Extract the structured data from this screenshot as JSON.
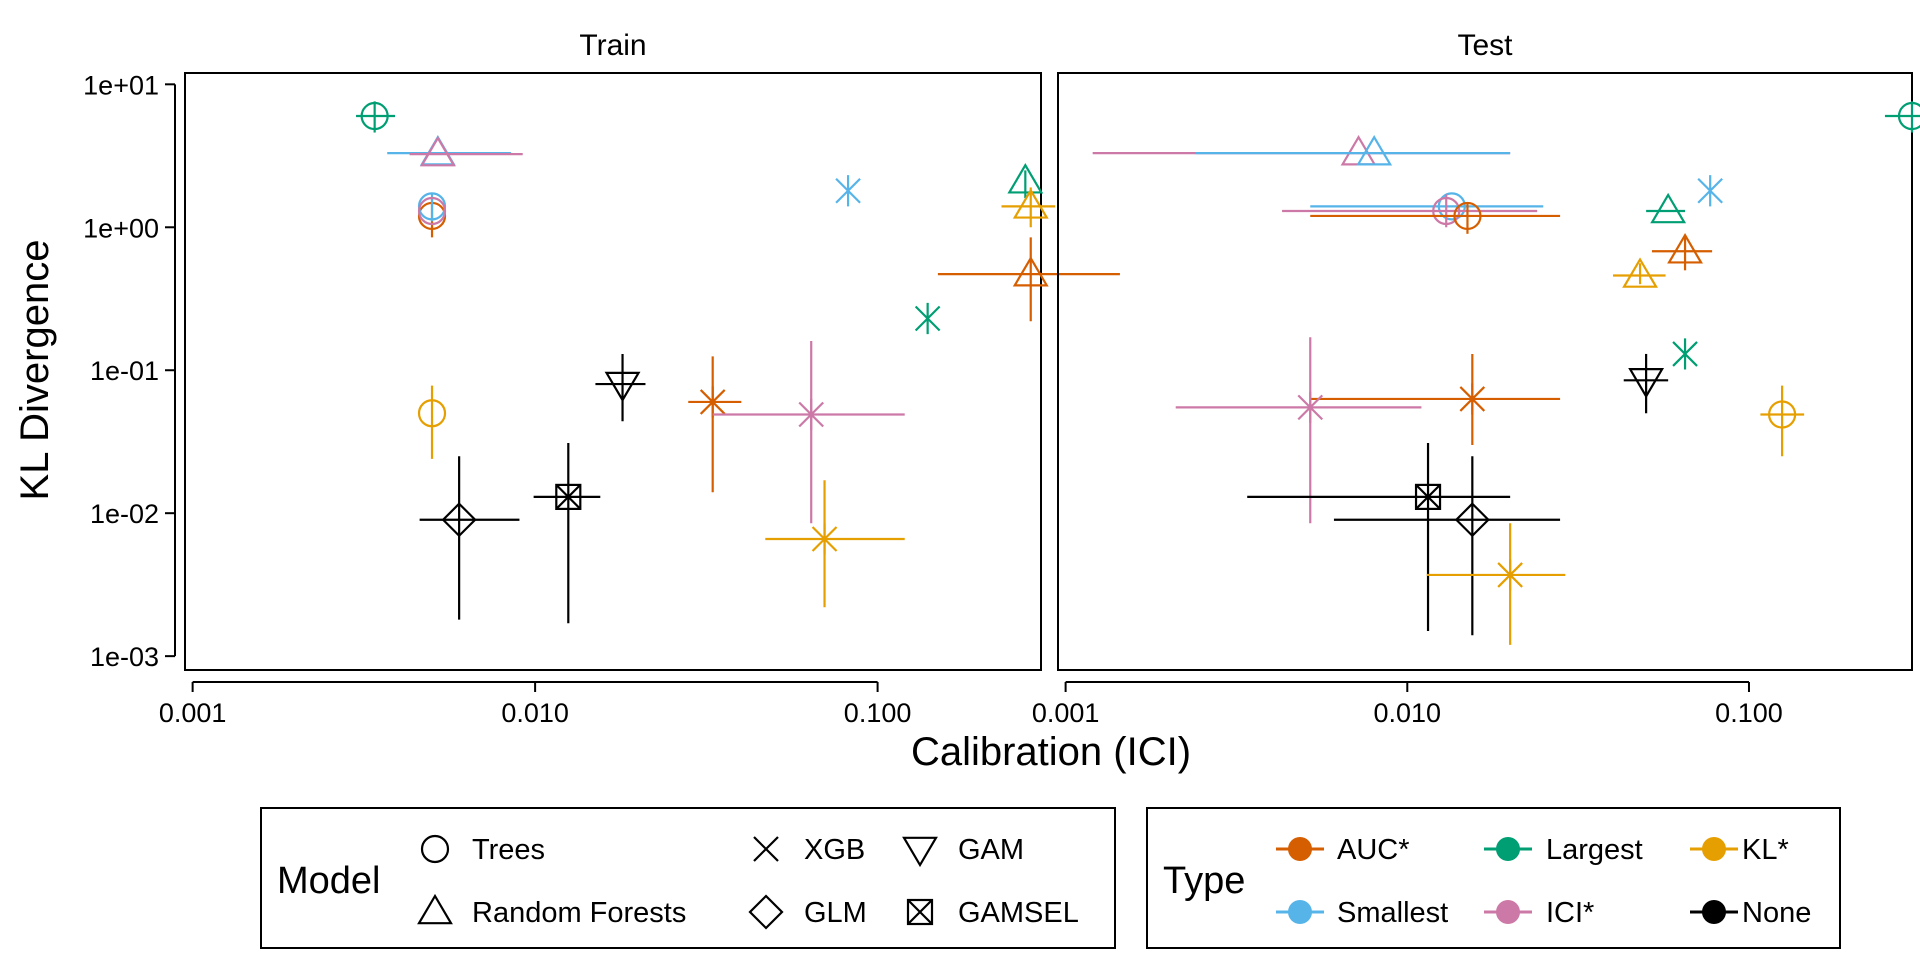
{
  "chart_data": {
    "type": "scatter",
    "xlabel": "Calibration (ICI)",
    "ylabel": "KL Divergence",
    "x_scale": "log10",
    "y_scale": "log10",
    "xlim": [
      0.00095,
      0.3
    ],
    "ylim": [
      0.0008,
      12
    ],
    "x_ticks": [
      0.001,
      0.01,
      0.1
    ],
    "x_tick_labels": [
      "0.001",
      "0.010",
      "0.100"
    ],
    "y_ticks": [
      0.001,
      0.01,
      0.1,
      1,
      10
    ],
    "y_tick_labels": [
      "1e-03",
      "1e-02",
      "1e-01",
      "1e+00",
      "1e+01"
    ],
    "grid": false,
    "legend_placement": "bottom",
    "panels": [
      {
        "name": "Train",
        "points": [
          {
            "model": "Trees",
            "type": "AUC*",
            "x": 0.005,
            "y": 1.2,
            "xerr": null,
            "yerr": [
              0.85,
              1.6
            ]
          },
          {
            "model": "Trees",
            "type": "Smallest",
            "x": 0.005,
            "y": 1.4,
            "xerr": null,
            "yerr": [
              1.1,
              1.7
            ]
          },
          {
            "model": "Trees",
            "type": "ICI*",
            "x": 0.005,
            "y": 1.3,
            "xerr": null,
            "yerr": null
          },
          {
            "model": "Trees",
            "type": "KL*",
            "x": 0.005,
            "y": 0.05,
            "xerr": null,
            "yerr": [
              0.024,
              0.078
            ]
          },
          {
            "model": "Trees",
            "type": "Largest",
            "x": 0.0034,
            "y": 6.0,
            "xerr": [
              0.003,
              0.0039
            ],
            "yerr": [
              4.6,
              7.6
            ]
          },
          {
            "model": "Random Forests",
            "type": "Smallest",
            "x": 0.0052,
            "y": 3.3,
            "xerr": [
              0.0037,
              0.0085
            ],
            "yerr": null
          },
          {
            "model": "Random Forests",
            "type": "ICI*",
            "x": 0.0052,
            "y": 3.25,
            "xerr": [
              0.0043,
              0.0092
            ],
            "yerr": null
          },
          {
            "model": "Random Forests",
            "type": "Largest",
            "x": 0.27,
            "y": 2.1,
            "xerr": null,
            "yerr": [
              1.6,
              2.5
            ]
          },
          {
            "model": "Random Forests",
            "type": "KL*",
            "x": 0.28,
            "y": 1.4,
            "xerr": [
              0.23,
              0.33
            ],
            "yerr": [
              1.0,
              1.9
            ]
          },
          {
            "model": "Random Forests",
            "type": "AUC*",
            "x": 0.28,
            "y": 0.47,
            "xerr": [
              0.15,
              0.51
            ],
            "yerr": [
              0.22,
              0.85
            ]
          },
          {
            "model": "XGB",
            "type": "Smallest",
            "x": 0.082,
            "y": 1.8,
            "xerr": null,
            "yerr": null
          },
          {
            "model": "XGB",
            "type": "Largest",
            "x": 0.14,
            "y": 0.23,
            "xerr": null,
            "yerr": null
          },
          {
            "model": "XGB",
            "type": "AUC*",
            "x": 0.033,
            "y": 0.06,
            "xerr": [
              0.028,
              0.04
            ],
            "yerr": [
              0.014,
              0.125
            ]
          },
          {
            "model": "XGB",
            "type": "ICI*",
            "x": 0.064,
            "y": 0.049,
            "xerr": [
              0.033,
              0.12
            ],
            "yerr": [
              0.0085,
              0.16
            ]
          },
          {
            "model": "XGB",
            "type": "KL*",
            "x": 0.07,
            "y": 0.0066,
            "xerr": [
              0.047,
              0.12
            ],
            "yerr": [
              0.0022,
              0.017
            ]
          },
          {
            "model": "GAM",
            "type": "None",
            "x": 0.018,
            "y": 0.08,
            "xerr": [
              0.015,
              0.021
            ],
            "yerr": [
              0.044,
              0.13
            ]
          },
          {
            "model": "GLM",
            "type": "None",
            "x": 0.006,
            "y": 0.009,
            "xerr": [
              0.0046,
              0.009
            ],
            "yerr": [
              0.0018,
              0.025
            ]
          },
          {
            "model": "GAMSEL",
            "type": "None",
            "x": 0.0125,
            "y": 0.013,
            "xerr": [
              0.0099,
              0.0155
            ],
            "yerr": [
              0.0017,
              0.031
            ]
          }
        ]
      },
      {
        "name": "Test",
        "points": [
          {
            "model": "Trees",
            "type": "Largest",
            "x": 0.3,
            "y": 6.0,
            "xerr": [
              0.25,
              0.36
            ],
            "yerr": [
              4.6,
              7.6
            ]
          },
          {
            "model": "Random Forests",
            "type": "ICI*",
            "x": 0.0072,
            "y": 3.3,
            "xerr": [
              0.0012,
              0.02
            ],
            "yerr": null
          },
          {
            "model": "Random Forests",
            "type": "Smallest",
            "x": 0.008,
            "y": 3.3,
            "xerr": [
              0.0024,
              0.02
            ],
            "yerr": null
          },
          {
            "model": "Trees",
            "type": "Smallest",
            "x": 0.0135,
            "y": 1.4,
            "xerr": [
              0.0052,
              0.025
            ],
            "yerr": null
          },
          {
            "model": "Trees",
            "type": "ICI*",
            "x": 0.013,
            "y": 1.3,
            "xerr": [
              0.0043,
              0.024
            ],
            "yerr": [
              1.0,
              1.7
            ]
          },
          {
            "model": "Trees",
            "type": "AUC*",
            "x": 0.015,
            "y": 1.2,
            "xerr": [
              0.0052,
              0.028
            ],
            "yerr": [
              0.9,
              1.5
            ]
          },
          {
            "model": "XGB",
            "type": "Smallest",
            "x": 0.077,
            "y": 1.8,
            "xerr": null,
            "yerr": null
          },
          {
            "model": "Random Forests",
            "type": "Largest",
            "x": 0.058,
            "y": 1.3,
            "xerr": [
              0.05,
              0.065
            ],
            "yerr": null
          },
          {
            "model": "Random Forests",
            "type": "AUC*",
            "x": 0.065,
            "y": 0.68,
            "xerr": [
              0.052,
              0.078
            ],
            "yerr": [
              0.5,
              0.85
            ]
          },
          {
            "model": "Random Forests",
            "type": "KL*",
            "x": 0.048,
            "y": 0.46,
            "xerr": [
              0.04,
              0.057
            ],
            "yerr": [
              0.4,
              0.56
            ]
          },
          {
            "model": "XGB",
            "type": "Largest",
            "x": 0.065,
            "y": 0.13,
            "xerr": null,
            "yerr": null
          },
          {
            "model": "GAM",
            "type": "None",
            "x": 0.05,
            "y": 0.085,
            "xerr": [
              0.043,
              0.058
            ],
            "yerr": [
              0.05,
              0.13
            ]
          },
          {
            "model": "Trees",
            "type": "KL*",
            "x": 0.125,
            "y": 0.049,
            "xerr": [
              0.108,
              0.145
            ],
            "yerr": [
              0.025,
              0.078
            ]
          },
          {
            "model": "XGB",
            "type": "AUC*",
            "x": 0.0155,
            "y": 0.063,
            "xerr": [
              0.0052,
              0.028
            ],
            "yerr": [
              0.03,
              0.13
            ]
          },
          {
            "model": "XGB",
            "type": "ICI*",
            "x": 0.0052,
            "y": 0.055,
            "xerr": [
              0.0021,
              0.011
            ],
            "yerr": [
              0.0085,
              0.17
            ]
          },
          {
            "model": "GAMSEL",
            "type": "None",
            "x": 0.0115,
            "y": 0.013,
            "xerr": [
              0.0034,
              0.02
            ],
            "yerr": [
              0.0015,
              0.031
            ]
          },
          {
            "model": "GLM",
            "type": "None",
            "x": 0.0155,
            "y": 0.009,
            "xerr": [
              0.0061,
              0.028
            ],
            "yerr": [
              0.0014,
              0.025
            ]
          },
          {
            "model": "XGB",
            "type": "KL*",
            "x": 0.02,
            "y": 0.0037,
            "xerr": [
              0.0114,
              0.029
            ],
            "yerr": [
              0.0012,
              0.0085
            ]
          }
        ]
      }
    ],
    "legends": {
      "model": {
        "title": "Model",
        "entries": [
          {
            "label": "Trees",
            "shape": "circle"
          },
          {
            "label": "XGB",
            "shape": "x"
          },
          {
            "label": "GAM",
            "shape": "triangle-down"
          },
          {
            "label": "Random Forests",
            "shape": "triangle"
          },
          {
            "label": "GLM",
            "shape": "diamond"
          },
          {
            "label": "GAMSEL",
            "shape": "box-x"
          }
        ]
      },
      "type": {
        "title": "Type",
        "entries": [
          {
            "label": "AUC*",
            "color": "#D55E00"
          },
          {
            "label": "Largest",
            "color": "#009E73"
          },
          {
            "label": "KL*",
            "color": "#E69F00"
          },
          {
            "label": "Smallest",
            "color": "#56B4E9"
          },
          {
            "label": "ICI*",
            "color": "#CC79A7"
          },
          {
            "label": "None",
            "color": "#000000"
          }
        ]
      }
    },
    "shape_by_model": {
      "Trees": "circle",
      "Random Forests": "triangle",
      "XGB": "x",
      "GLM": "diamond",
      "GAM": "triangle-down",
      "GAMSEL": "box-x"
    },
    "asterisk_models": [
      "XGB"
    ],
    "colors": {
      "AUC*": "#D55E00",
      "Largest": "#009E73",
      "KL*": "#E69F00",
      "Smallest": "#56B4E9",
      "ICI*": "#CC79A7",
      "None": "#000000"
    }
  }
}
